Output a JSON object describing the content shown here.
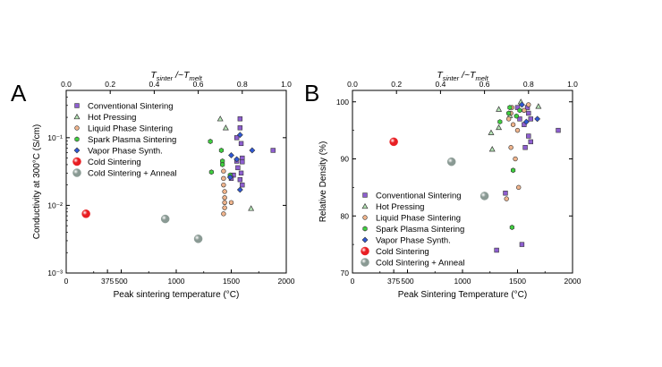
{
  "figure": {
    "panel_a_label": "A",
    "panel_b_label": "B"
  },
  "chart_data": [
    {
      "panel": "A",
      "type": "scatter",
      "xlabel": "Peak sintering temperature (°C)",
      "ylabel": "Conductivity at 300°C (S/cm)",
      "x_top_label": "T_sinter /~T_melt",
      "x_top_label_main_1": "T",
      "x_top_label_sub_1": "sinter",
      "x_top_label_mid": " /~",
      "x_top_label_main_2": "T",
      "x_top_label_sub_2": "melt",
      "xlim": [
        0,
        2000
      ],
      "ylim": [
        0.001,
        0.5
      ],
      "yscale": "log",
      "xticks": [
        0,
        375,
        500,
        1000,
        1500,
        2000
      ],
      "xtick_labels": [
        "0",
        "375",
        "500",
        "1000",
        "1500",
        "2000"
      ],
      "yticks": [
        0.001,
        0.01,
        0.1
      ],
      "ytick_labels": [
        "10⁻³",
        "10⁻²",
        "10⁻¹"
      ],
      "top_ticks": [
        0,
        0.2,
        0.4,
        0.6,
        0.8,
        1.0
      ],
      "top_tick_labels": [
        "0.0",
        "0.2",
        "0.4",
        "0.6",
        "0.8",
        "1.0"
      ],
      "legend_position": "top-left",
      "grid": false,
      "series": [
        {
          "name": "Conventional Sintering",
          "marker": "square",
          "color": "#8e5fd0",
          "points": [
            [
              1580,
              0.19
            ],
            [
              1580,
              0.14
            ],
            [
              1550,
              0.1
            ],
            [
              1590,
              0.082
            ],
            [
              1600,
              0.05
            ],
            [
              1550,
              0.045
            ],
            [
              1560,
              0.036
            ],
            [
              1590,
              0.03
            ],
            [
              1520,
              0.028
            ],
            [
              1580,
              0.024
            ],
            [
              1600,
              0.02
            ],
            [
              1880,
              0.065
            ],
            [
              1600,
              0.044
            ],
            [
              1500,
              0.025
            ]
          ]
        },
        {
          "name": "Hot Pressing",
          "marker": "triangle",
          "color": "#b6e5b6",
          "points": [
            [
              1400,
              0.19
            ],
            [
              1450,
              0.14
            ],
            [
              1680,
              0.009
            ]
          ]
        },
        {
          "name": "Liquid Phase Sintering",
          "marker": "circle",
          "color": "#f0b48c",
          "points": [
            [
              1430,
              0.032
            ],
            [
              1430,
              0.025
            ],
            [
              1430,
              0.02
            ],
            [
              1440,
              0.016
            ],
            [
              1440,
              0.013
            ],
            [
              1440,
              0.011
            ],
            [
              1440,
              0.0092
            ],
            [
              1430,
              0.0075
            ],
            [
              1500,
              0.011
            ]
          ]
        },
        {
          "name": "Spark Plasma Sintering",
          "marker": "hexagon",
          "color": "#3fcf3f",
          "points": [
            [
              1310,
              0.088
            ],
            [
              1410,
              0.065
            ],
            [
              1420,
              0.045
            ],
            [
              1420,
              0.04
            ],
            [
              1490,
              0.028
            ],
            [
              1320,
              0.031
            ]
          ]
        },
        {
          "name": "Vapor Phase Synth.",
          "marker": "diamond",
          "color": "#2f58d6",
          "points": [
            [
              1580,
              0.11
            ],
            [
              1500,
              0.055
            ],
            [
              1550,
              0.048
            ],
            [
              1690,
              0.065
            ],
            [
              1490,
              0.026
            ],
            [
              1580,
              0.017
            ]
          ]
        },
        {
          "name": "Cold Sintering",
          "marker": "sphere",
          "color": "#e81e22",
          "points": [
            [
              180,
              0.0075
            ]
          ]
        },
        {
          "name": "Cold Sintering + Anneal",
          "marker": "sphere",
          "color": "#8a9a94",
          "points": [
            [
              900,
              0.0063
            ],
            [
              1200,
              0.0032
            ]
          ]
        }
      ]
    },
    {
      "panel": "B",
      "type": "scatter",
      "xlabel": "Peak Sintering Temperature (°C)",
      "ylabel": "Relative Density (%)",
      "x_top_label": "T_sinter /~T_melt",
      "x_top_label_main_1": "T",
      "x_top_label_sub_1": "sinter",
      "x_top_label_mid": " /~",
      "x_top_label_main_2": "T",
      "x_top_label_sub_2": "melt",
      "xlim": [
        0,
        2000
      ],
      "ylim": [
        70,
        102
      ],
      "yscale": "linear",
      "xticks": [
        0,
        375,
        500,
        1000,
        1500,
        2000
      ],
      "xtick_labels": [
        "0",
        "375",
        "500",
        "1000",
        "1500",
        "2000"
      ],
      "yticks": [
        70,
        80,
        90,
        100
      ],
      "ytick_labels": [
        "70",
        "80",
        "90",
        "100"
      ],
      "top_ticks": [
        0,
        0.2,
        0.4,
        0.6,
        0.8,
        1.0
      ],
      "top_tick_labels": [
        "0.0",
        "0.2",
        "0.4",
        "0.6",
        "0.8",
        "1.0"
      ],
      "legend_position": "bottom-left",
      "grid": false,
      "series": [
        {
          "name": "Conventional Sintering",
          "marker": "square",
          "color": "#8e5fd0",
          "points": [
            [
              1590,
              99
            ],
            [
              1600,
              98
            ],
            [
              1620,
              97
            ],
            [
              1560,
              96
            ],
            [
              1600,
              94
            ],
            [
              1620,
              93
            ],
            [
              1870,
              95
            ],
            [
              1570,
              92
            ],
            [
              1390,
              84
            ],
            [
              1310,
              74
            ],
            [
              1540,
              75
            ],
            [
              1500,
              99
            ],
            [
              1520,
              97
            ]
          ]
        },
        {
          "name": "Hot Pressing",
          "marker": "triangle",
          "color": "#b6e5b6",
          "points": [
            [
              1330,
              98.7
            ],
            [
              1430,
              97.6
            ],
            [
              1260,
              94.6
            ],
            [
              1270,
              91.7
            ],
            [
              1690,
              99.2
            ],
            [
              1530,
              100
            ],
            [
              1330,
              95.5
            ]
          ]
        },
        {
          "name": "Liquid Phase Sintering",
          "marker": "circle",
          "color": "#f0b48c",
          "points": [
            [
              1440,
              98
            ],
            [
              1460,
              96
            ],
            [
              1500,
              95
            ],
            [
              1440,
              92
            ],
            [
              1480,
              90
            ],
            [
              1400,
              83
            ],
            [
              1510,
              85
            ],
            [
              1450,
              99
            ],
            [
              1600,
              99.5
            ],
            [
              1560,
              98.5
            ],
            [
              1420,
              97
            ]
          ]
        },
        {
          "name": "Spark Plasma Sintering",
          "marker": "hexagon",
          "color": "#3fcf3f",
          "points": [
            [
              1430,
              99
            ],
            [
              1340,
              96.5
            ],
            [
              1490,
              97.5
            ],
            [
              1520,
              98.5
            ],
            [
              1460,
              88
            ],
            [
              1450,
              78
            ],
            [
              1420,
              98
            ]
          ]
        },
        {
          "name": "Vapor Phase Synth.",
          "marker": "diamond",
          "color": "#2f58d6",
          "points": [
            [
              1680,
              97
            ],
            [
              1540,
              99.5
            ],
            [
              1580,
              96.5
            ]
          ]
        },
        {
          "name": "Cold Sintering",
          "marker": "sphere",
          "color": "#e81e22",
          "points": [
            [
              375,
              93
            ]
          ]
        },
        {
          "name": "Cold Sintering + Anneal",
          "marker": "sphere",
          "color": "#8a9a94",
          "points": [
            [
              900,
              89.5
            ],
            [
              1200,
              83.5
            ]
          ]
        }
      ]
    }
  ]
}
